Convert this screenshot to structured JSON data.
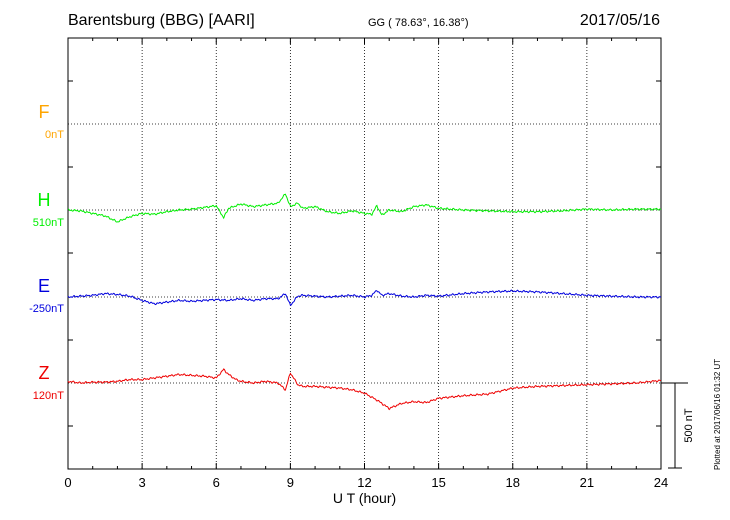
{
  "header": {
    "title": "Barentsburg (BBG)  [AARI]",
    "coords": "GG ( 78.63°,  16.38°)",
    "date": "2017/05/16"
  },
  "plotted_note": "Plotted at 2017/06/16 01:32 UT",
  "chart_data": {
    "type": "line",
    "xlabel": "U T (hour)",
    "xlim": [
      0,
      24
    ],
    "xticks": [
      "0",
      "3",
      "6",
      "9",
      "12",
      "15",
      "18",
      "21",
      "24"
    ],
    "grid": "dotted",
    "scale_bar": {
      "label": "500 nT",
      "value_nT": 500
    },
    "components": [
      {
        "name": "F",
        "baseline": "0nT",
        "color": "#ffa500"
      },
      {
        "name": "H",
        "baseline": "510nT",
        "color": "#00ee00"
      },
      {
        "name": "E",
        "baseline": "-250nT",
        "color": "#0000dd"
      },
      {
        "name": "Z",
        "baseline": "120nT",
        "color": "#ee0000"
      }
    ],
    "series": [
      {
        "name": "H",
        "x": [
          0,
          0.5,
          1.0,
          1.5,
          2.0,
          2.5,
          3.0,
          3.5,
          4.0,
          4.5,
          5.0,
          5.5,
          6.0,
          6.3,
          6.5,
          7.0,
          7.5,
          8.0,
          8.5,
          8.8,
          9.0,
          9.3,
          9.5,
          10.0,
          10.5,
          11.0,
          11.5,
          12.0,
          12.3,
          12.5,
          12.7,
          13.0,
          13.5,
          14.0,
          14.5,
          15.0,
          16.0,
          17.0,
          18.0,
          19.0,
          20.0,
          21.0,
          22.0,
          23.0,
          24.0
        ],
        "y": [
          0,
          -5,
          -20,
          -35,
          -70,
          -40,
          -20,
          -25,
          -10,
          0,
          5,
          15,
          25,
          -45,
          10,
          35,
          20,
          30,
          40,
          95,
          20,
          40,
          10,
          20,
          -10,
          -20,
          -5,
          -20,
          -25,
          25,
          -30,
          0,
          -10,
          20,
          30,
          10,
          0,
          -5,
          -10,
          -10,
          -5,
          5,
          0,
          5,
          5
        ]
      },
      {
        "name": "E",
        "x": [
          0,
          0.5,
          1.0,
          1.5,
          2.0,
          2.5,
          3.0,
          3.5,
          4.0,
          4.5,
          5.0,
          5.5,
          6.0,
          6.5,
          7.0,
          7.5,
          8.0,
          8.5,
          8.8,
          9.0,
          9.3,
          9.5,
          10.0,
          10.5,
          11.0,
          11.5,
          12.0,
          12.3,
          12.5,
          12.7,
          13.0,
          13.5,
          14.0,
          14.5,
          15.0,
          16.0,
          17.0,
          18.0,
          19.0,
          20.0,
          21.0,
          22.0,
          23.0,
          24.0
        ],
        "y": [
          0,
          5,
          10,
          20,
          15,
          5,
          -20,
          -40,
          -30,
          -20,
          -25,
          -20,
          -15,
          -20,
          -10,
          -20,
          -10,
          -10,
          20,
          -50,
          5,
          10,
          5,
          0,
          5,
          10,
          0,
          10,
          40,
          10,
          20,
          5,
          0,
          10,
          5,
          20,
          30,
          35,
          30,
          20,
          10,
          5,
          0,
          0
        ]
      },
      {
        "name": "Z",
        "x": [
          0,
          0.5,
          1.0,
          1.5,
          2.0,
          2.5,
          3.0,
          3.5,
          4.0,
          4.5,
          5.0,
          5.5,
          6.0,
          6.3,
          6.5,
          6.8,
          7.0,
          7.5,
          8.0,
          8.5,
          8.8,
          9.0,
          9.3,
          9.5,
          10.0,
          10.5,
          11.0,
          11.5,
          12.0,
          12.5,
          13.0,
          13.5,
          14.0,
          14.5,
          15.0,
          16.0,
          17.0,
          18.0,
          19.0,
          20.0,
          21.0,
          22.0,
          23.0,
          24.0
        ],
        "y": [
          10,
          0,
          5,
          5,
          10,
          20,
          20,
          30,
          40,
          50,
          45,
          40,
          30,
          80,
          50,
          20,
          10,
          0,
          10,
          0,
          -40,
          60,
          -10,
          -20,
          -20,
          -25,
          -30,
          -40,
          -60,
          -100,
          -150,
          -120,
          -110,
          -115,
          -90,
          -75,
          -65,
          -30,
          -20,
          -15,
          -10,
          -5,
          0,
          15
        ]
      }
    ]
  }
}
